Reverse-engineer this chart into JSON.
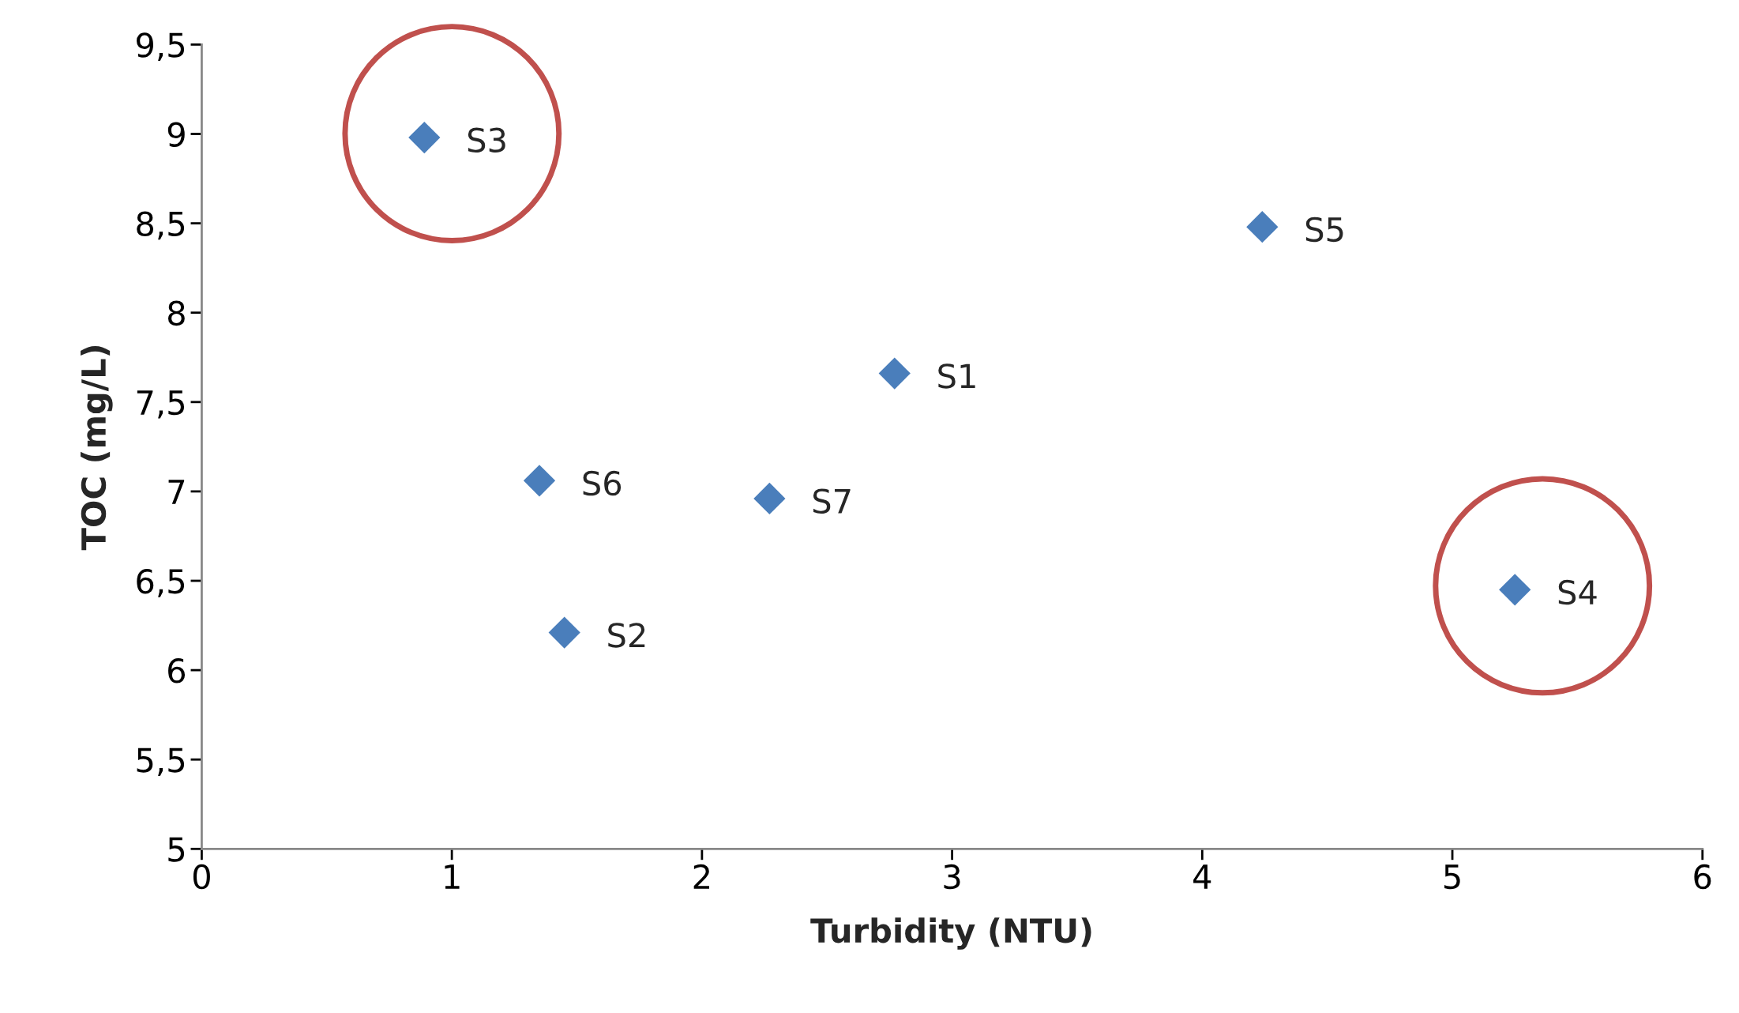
{
  "chart_data": {
    "type": "scatter",
    "xlabel": "Turbidity (NTU)",
    "ylabel": "TOC (mg/L)",
    "x": [
      2.77,
      1.45,
      0.89,
      5.25,
      4.24,
      1.35,
      2.27
    ],
    "values": [
      7.66,
      6.21,
      8.98,
      6.45,
      8.48,
      7.06,
      6.96
    ],
    "value_labels": [
      "S1",
      "S2",
      "S3",
      "S4",
      "S5",
      "S6",
      "S7"
    ],
    "color": "#4a7ebb",
    "marker": "diamond",
    "grid": false,
    "xlim": [
      0,
      6
    ],
    "xticks": [
      0,
      1,
      2,
      3,
      4,
      5,
      6
    ],
    "ylim": [
      5,
      9.5
    ],
    "yticks": [
      5,
      {
        "value": 5.5,
        "label": "5,5"
      },
      6,
      {
        "value": 6.5,
        "label": "6,5"
      },
      7,
      {
        "value": 7.5,
        "label": "7,5"
      },
      8,
      {
        "value": 8.5,
        "label": "8,5"
      },
      9,
      {
        "value": 9.5,
        "label": "9,5"
      }
    ]
  }
}
